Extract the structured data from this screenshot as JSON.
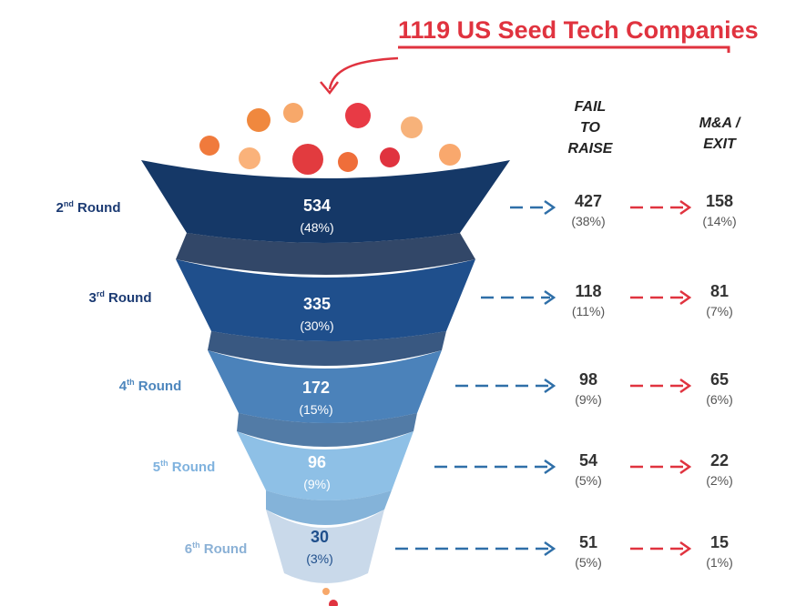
{
  "title": "1119 US Seed Tech Companies",
  "headers": {
    "fail": [
      "FAIL",
      "TO",
      "RAISE"
    ],
    "exit": [
      "M&A /",
      "EXIT"
    ]
  },
  "colors": {
    "title": "#e0333f",
    "fail_arrow": "#2f6fa8",
    "exit_arrow": "#e0333f"
  },
  "stages": [
    {
      "label_num": "2",
      "label_sup": "nd",
      "label_text": " Round",
      "count": "534",
      "pct": "(48%)",
      "fail_count": "427",
      "fail_pct": "(38%)",
      "exit_count": "158",
      "exit_pct": "(14%)",
      "label_color": "#1c3b73",
      "fill": "#153867",
      "fill_dark": "#0e274d",
      "text_color": "#ffffff"
    },
    {
      "label_num": "3",
      "label_sup": "rd",
      "label_text": " Round",
      "count": "335",
      "pct": "(30%)",
      "fail_count": "118",
      "fail_pct": "(11%)",
      "exit_count": "81",
      "exit_pct": "(7%)",
      "label_color": "#1c3b73",
      "fill": "#1f4f8c",
      "fill_dark": "#163b6b",
      "text_color": "#ffffff"
    },
    {
      "label_num": "4",
      "label_sup": "th",
      "label_text": " Round",
      "count": "172",
      "pct": "(15%)",
      "fail_count": "98",
      "fail_pct": "(9%)",
      "exit_count": "65",
      "exit_pct": "(6%)",
      "label_color": "#4d86bd",
      "fill": "#4b82ba",
      "fill_dark": "#346496",
      "text_color": "#ffffff"
    },
    {
      "label_num": "5",
      "label_sup": "th",
      "label_text": " Round",
      "count": "96",
      "pct": "(9%)",
      "fail_count": "54",
      "fail_pct": "(5%)",
      "exit_count": "22",
      "exit_pct": "(2%)",
      "label_color": "#7fb2de",
      "fill": "#8ec0e6",
      "fill_dark": "#6ea6d2",
      "text_color": "#ffffff"
    },
    {
      "label_num": "6",
      "label_sup": "th",
      "label_text": " Round",
      "count": "30",
      "pct": "(3%)",
      "fail_count": "51",
      "fail_pct": "(5%)",
      "exit_count": "15",
      "exit_pct": "(1%)",
      "label_color": "#8bb1d6",
      "fill": "#c9d9ea",
      "fill_dark": "#adc2d8",
      "text_color": "#1f4f8c"
    }
  ],
  "bubbles": [
    {
      "color": "#f07a3c"
    },
    {
      "color": "#f0883e"
    },
    {
      "color": "#f7a86a"
    },
    {
      "color": "#fab27a"
    },
    {
      "color": "#e23b3f"
    },
    {
      "color": "#e83a45"
    },
    {
      "color": "#ef6e3a"
    },
    {
      "color": "#f7b27a"
    },
    {
      "color": "#e0333f"
    },
    {
      "color": "#f9a86d"
    }
  ]
}
